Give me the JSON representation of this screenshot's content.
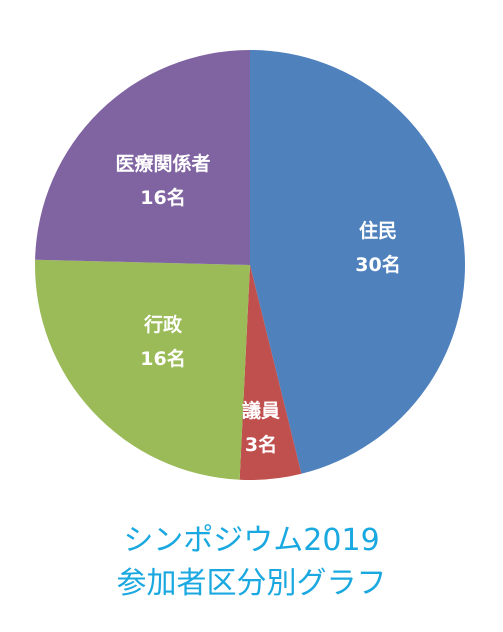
{
  "chart_data": {
    "type": "pie",
    "title": [
      "シンポジウム2019",
      "参加者区分別グラフ"
    ],
    "start": "12 o'clock",
    "direction": "clockwise",
    "slices": [
      {
        "label": "住民",
        "value": 30,
        "value_label": "30名",
        "color": "#4f81bd"
      },
      {
        "label": "議員",
        "value": 3,
        "value_label": "3名",
        "color": "#c0504d"
      },
      {
        "label": "行政",
        "value": 16,
        "value_label": "16名",
        "color": "#9bbb59"
      },
      {
        "label": "医療関係者",
        "value": 16,
        "value_label": "16名",
        "color": "#8064a2"
      }
    ]
  }
}
